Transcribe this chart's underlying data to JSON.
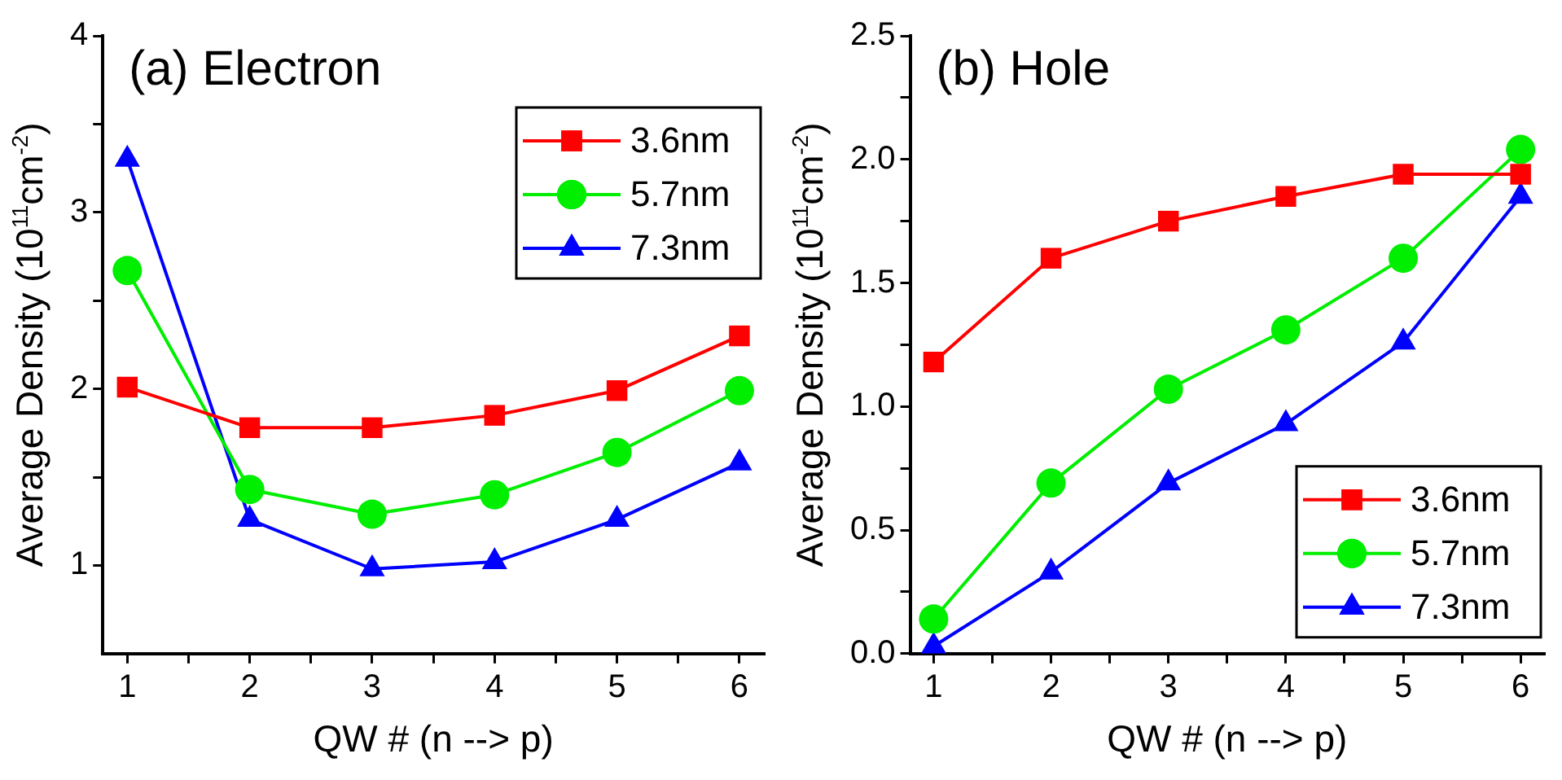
{
  "chart_data": [
    {
      "type": "line",
      "title": "(a) Electron",
      "xlabel": "QW # (n --> p)",
      "ylabel": "Average Density (10$^{11}$cm$^{-2}$)",
      "x": [
        1,
        2,
        3,
        4,
        5,
        6
      ],
      "series": [
        {
          "name": "3.6nm",
          "color": "#ff0000",
          "marker": "square",
          "values": [
            2.01,
            1.78,
            1.78,
            1.85,
            1.99,
            2.3
          ]
        },
        {
          "name": "5.7nm",
          "color": "#00ee00",
          "marker": "circle",
          "values": [
            2.67,
            1.43,
            1.29,
            1.4,
            1.64,
            1.99
          ]
        },
        {
          "name": "7.3nm",
          "color": "#0000ff",
          "marker": "triangle",
          "values": [
            3.3,
            1.26,
            0.98,
            1.02,
            1.26,
            1.58
          ]
        }
      ],
      "xlim": [
        0.8,
        6.2
      ],
      "xticks": [
        1,
        {
          "value": 1.5,
          "label": null
        },
        2,
        {
          "value": 2.5,
          "label": null
        },
        3,
        {
          "value": 3.5,
          "label": null
        },
        4,
        {
          "value": 4.5,
          "label": null
        },
        5,
        {
          "value": 5.5,
          "label": null
        },
        6
      ],
      "ylim": [
        0.5,
        4
      ],
      "yticks": [
        1,
        {
          "value": 1.5,
          "label": null
        },
        2,
        {
          "value": 2.5,
          "label": null
        },
        3,
        {
          "value": 3.5,
          "label": null
        },
        4
      ],
      "grid": false,
      "legend": "top right"
    },
    {
      "type": "line",
      "title": "(b) Hole",
      "xlabel": "QW # (n --> p)",
      "ylabel": "Average Density (10$^{11}$cm$^{-2}$)",
      "x": [
        1,
        2,
        3,
        4,
        5,
        6
      ],
      "series": [
        {
          "name": "3.6nm",
          "color": "#ff0000",
          "marker": "square",
          "values": [
            1.18,
            1.6,
            1.75,
            1.85,
            1.94,
            1.94
          ]
        },
        {
          "name": "5.7nm",
          "color": "#00ee00",
          "marker": "circle",
          "values": [
            0.14,
            0.69,
            1.07,
            1.31,
            1.6,
            2.04
          ]
        },
        {
          "name": "7.3nm",
          "color": "#0000ff",
          "marker": "triangle",
          "values": [
            0.03,
            0.33,
            0.69,
            0.93,
            1.26,
            1.85
          ]
        }
      ],
      "xlim": [
        0.8,
        6.2
      ],
      "xticks": [
        1,
        {
          "value": 1.5,
          "label": null
        },
        2,
        {
          "value": 2.5,
          "label": null
        },
        3,
        {
          "value": 3.5,
          "label": null
        },
        4,
        {
          "value": 4.5,
          "label": null
        },
        5,
        {
          "value": 5.5,
          "label": null
        },
        6
      ],
      "ylim": [
        0,
        2.5
      ],
      "yticks": [
        {
          "value": 0,
          "label": "0.0"
        },
        {
          "value": 0.25,
          "label": null
        },
        {
          "value": 0.5,
          "label": "0.5"
        },
        {
          "value": 0.75,
          "label": null
        },
        {
          "value": 1,
          "label": "1.0"
        },
        {
          "value": 1.25,
          "label": null
        },
        1.5,
        {
          "value": 1.75,
          "label": null
        },
        {
          "value": 2,
          "label": "2.0"
        },
        {
          "value": 2.25,
          "label": null
        },
        2.5
      ],
      "grid": false,
      "legend": "bottom right"
    }
  ]
}
